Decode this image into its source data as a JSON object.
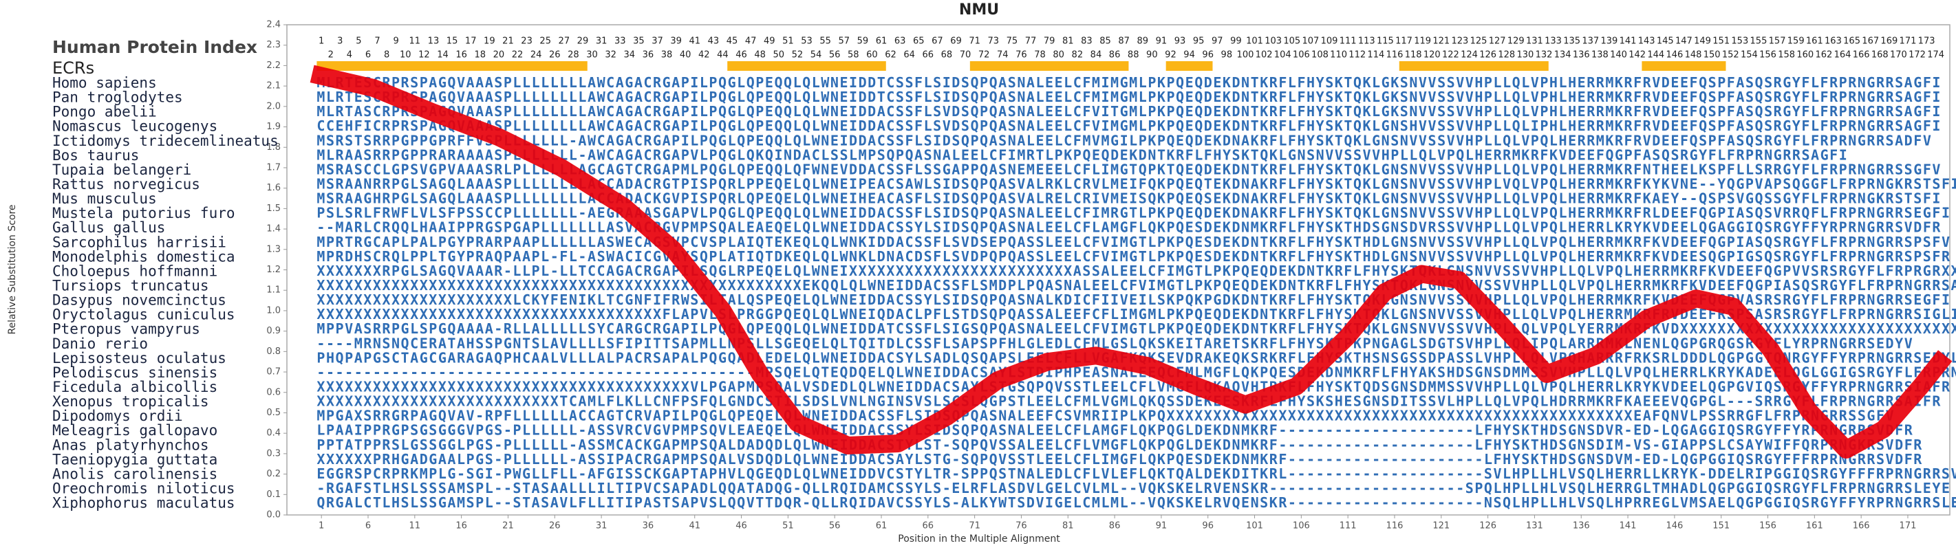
{
  "chart_data": {
    "type": "line",
    "title": "NMU",
    "x_label": "Position in the Multiple Alignment",
    "y_label": "Relative Substitution Score",
    "x": [
      0,
      6.6,
      13,
      20,
      26.7,
      33.4,
      38.7,
      44,
      48,
      52,
      57.4,
      62.8,
      68,
      73.5,
      78.8,
      84,
      89.5,
      94.8,
      100,
      105.5,
      110.9,
      114.9,
      118.9,
      122.9,
      126.9,
      132.3,
      137.6,
      143,
      148.3,
      152.3,
      156.3,
      160.4,
      164.4,
      168.4,
      172.4,
      175
    ],
    "series": [
      {
        "color": "#e8000b",
        "values": [
          2.16,
          2.09,
          1.97,
          1.85,
          1.7,
          1.51,
          1.3,
          1.0,
          0.69,
          0.45,
          0.34,
          0.35,
          0.48,
          0.66,
          0.75,
          0.78,
          0.73,
          0.63,
          0.54,
          0.63,
          0.87,
          1.09,
          1.18,
          1.15,
          0.96,
          0.69,
          0.78,
          0.96,
          1.06,
          1.02,
          0.81,
          0.51,
          0.32,
          0.42,
          0.63,
          0.78
        ]
      }
    ],
    "xlim": [
      -2.7,
      175.5
    ],
    "ylim": [
      0,
      2.4
    ],
    "xticks": [
      1,
      6,
      11,
      16,
      21,
      26,
      31,
      36,
      41,
      46,
      51,
      56,
      61,
      66,
      71,
      76,
      81,
      86,
      91,
      96,
      101,
      106,
      111,
      116,
      121,
      126,
      131,
      136,
      141,
      146,
      151,
      156,
      161,
      166,
      171
    ],
    "yticks": [
      {
        "value": 0,
        "label": "0.0"
      },
      {
        "value": 0.1,
        "label": "0.1"
      },
      {
        "value": 0.2,
        "label": "0.2"
      },
      {
        "value": 0.3,
        "label": "0.3"
      },
      {
        "value": 0.4,
        "label": "0.4"
      },
      {
        "value": 0.5,
        "label": "0.5"
      },
      {
        "value": 0.6,
        "label": "0.6"
      },
      {
        "value": 0.7,
        "label": "0.7"
      },
      {
        "value": 0.8,
        "label": "0.8"
      },
      {
        "value": 0.9,
        "label": "0.9"
      },
      {
        "value": 1,
        "label": "1.0"
      },
      {
        "value": 1.1,
        "label": "1.1"
      },
      {
        "value": 1.2,
        "label": "1.2"
      },
      {
        "value": 1.3,
        "label": "1.3"
      },
      {
        "value": 1.4,
        "label": "1.4"
      },
      {
        "value": 1.5,
        "label": "1.5"
      },
      {
        "value": 1.6,
        "label": "1.6"
      },
      {
        "value": 1.7,
        "label": "1.7"
      },
      {
        "value": 1.8,
        "label": "1.8"
      },
      {
        "value": 1.9,
        "label": "1.9"
      },
      {
        "value": 2,
        "label": "2.0"
      },
      {
        "value": 2.1,
        "label": "2.1"
      },
      {
        "value": 2.2,
        "label": "2.2"
      },
      {
        "value": 2.3,
        "label": "2.3"
      },
      {
        "value": 2.4,
        "label": "2.4"
      }
    ]
  },
  "alignment": {
    "header": "Human Protein Index",
    "ecr_label": "ECRs",
    "ecr_color": "#fbb516",
    "positions": [
      1,
      2,
      3,
      4,
      5,
      6,
      7,
      8,
      9,
      10,
      11,
      12,
      13,
      14,
      15,
      16,
      17,
      18,
      19,
      20,
      21,
      22,
      23,
      24,
      25,
      26,
      27,
      28,
      29,
      30,
      31,
      32,
      33,
      34,
      35,
      36,
      37,
      38,
      39,
      40,
      41,
      42,
      43,
      44,
      45,
      46,
      47,
      48,
      49,
      50,
      51,
      52,
      53,
      54,
      55,
      56,
      57,
      58,
      59,
      60,
      61,
      62,
      63,
      64,
      65,
      66,
      67,
      68,
      69,
      70,
      71,
      72,
      73,
      74,
      75,
      76,
      77,
      78,
      79,
      80,
      81,
      82,
      83,
      84,
      85,
      86,
      87,
      88,
      89,
      90,
      91,
      92,
      93,
      94,
      95,
      96,
      97,
      98,
      99,
      100,
      101,
      102,
      103,
      104,
      105,
      106,
      107,
      108,
      109,
      110,
      111,
      112,
      113,
      114,
      115,
      116,
      117,
      118,
      119,
      120,
      121,
      122,
      123,
      124,
      125,
      126,
      127,
      128,
      129,
      130,
      131,
      132,
      133,
      134,
      135,
      136,
      137,
      138,
      139,
      140,
      141,
      142,
      143,
      144,
      145,
      146,
      147,
      148,
      149,
      150,
      151,
      152,
      153,
      154,
      155,
      156,
      157,
      158,
      159,
      160,
      161,
      162,
      163,
      164,
      165,
      166,
      167,
      168,
      169,
      170,
      171,
      172,
      173,
      174
    ],
    "ecrs": [
      [
        1,
        29
      ],
      [
        45,
        61
      ],
      [
        71,
        87
      ],
      [
        92,
        96
      ],
      [
        117,
        132
      ],
      [
        143,
        151
      ]
    ],
    "rows": [
      {
        "species": "Homo sapiens",
        "sequence": "MLRTESCRPRSPAGQVAAASPLLLLLLLLAWCAGACRGAPILPQGLQPEQQLQLWNEIDDTCSSFLSIDSQPQASNALEELCFMIMGMLPKPQEQDEKDNTKRFLFHYSKTQKLGKSNVVSSVVHPLLQLVPHLHERRMKRFRVDEEFQSPFASQSRGYFLFRPRNGRRSAGFI"
      },
      {
        "species": "Pan troglodytes",
        "sequence": "MLRTESCRPRSPAGQVAAASPLLLLLLLLAWCAGACRGAPILPQGLQPEQQLQLWNEIDDTCSSFLSIDSQPQASNALEELCFMIMGMLPKPQEQDEKDNTKRFLFHYSKTQKLGKSNVVSSVVHPLLQLVPHLHERRMKRFRVDEEFQSPFASQSRGYFLFRPRNGRRSAGFI"
      },
      {
        "species": "Pongo abelii",
        "sequence": "MLRTASCRPRSPAGQVAAASPLLLLLLLLAWCAGACRGAPILPQGLQPEQQLQLWNEIDDACSSFLSVDSQPQASNALEELCFVITGMLPKPQEQDEKDNTKRFLFHYSKTQKLGKSNVVSSVVHPLLQLVPHLHERRMKRFRVDEEFQSPFASQSRGYFLFRPRNGRRSAGFI"
      },
      {
        "species": "Nomascus leucogenys",
        "sequence": "CCEHFICRPRSPAGQVAAASPLLLLLLLLAWCAGACRGAPILPQGLQPEQQLQLWNEIDDACSSFLSVDSQPQASNALEELCFVIMGMLPKPQEQDEKDNTKRFLFHYSKTQKLGNSHVVSSVVHPLLQLIPHLHERRMKRFRVDEEFQSPFASQSRGYFLFRPRNGRRSAGFI"
      },
      {
        "species": "Ictidomys tridecemlineatus",
        "sequence": "MSRSTSRRPGPPGPRFFVSPLLLLLLL-AWCAGACRGAPILPQGLQPEQQLQLWNEIDDACSSFLSIDSQPQASNALEELCFMVMGILPKPQEQDEKDNAKRFLFHYSKTQKLGNSNVVSSVVHPLLQLVPQLHERRMKRFRVDEEFQSPFASQSRGYFLFRPRNGRRSADFV"
      },
      {
        "species": "Bos taurus",
        "sequence": "MLRAASRRPGPPRARAAAASPLLLLLLL-AWCAGACRGAPVLPQGLQKQINDACLSSLMPSQPQASNALEELCFIMRTLPKPQEQDEKDNTKRFLFHYSKTQKLGNSNVVSSVVHPLLQLVPQLHERRMKRFKVDEEFQGPFASQSRGYFLFRPRNGRRSAGFI"
      },
      {
        "species": "Tupaia belangeri",
        "sequence": "MSRASCCLGPSVGPVAAASRLPLLLLLLAGCAGTCRGAPMLPQGLQPEQQLQFWNEVDDACSSFLSSGAPPQASNEMEEELCFLIMGTQPKTQEQDEKDNTKRFLFHYSKTQKLGNSNVVSSVVHPLLQLVPQLHERRMKRFNTHEELKSPFLLSRRGYFLFRPRNGRRSSGFV"
      },
      {
        "species": "Rattus norvegicus",
        "sequence": "MSRAANRRPGLSAGQLAAASPLLLLLLLLACCADACRGTPISPQRLPPEQELQLWNEIPEACSAWLSIDSQPQASVALRKLCRVLMEIFQKPQEQTEKDNAKRFLFHYSKTQKLGNSNVVSSVVHPLVQLVPQLHERRMKRFKYKVNE--YQGPVAPSQGGFLFRPRNGKRSTSFI"
      },
      {
        "species": "Mus musculus",
        "sequence": "MSRAAGHRPGLSAGQLAAASPLLLLLLLLACCADACKGVPISPQRLQPEQELQLWNEIHEACASFLSIDSQPQASVALRELCRIVMEISQKPQEQSEKDNAKRFLFHYSKTQKLGNSNVVSSVVHPLLQLVPQLHERRMKRFKAEY--QSPSVGQSSGYFLFRPRNGKRSTSFI"
      },
      {
        "species": "Mustela putorius furo",
        "sequence": "PSLSRLFRWFLVLSFPSSCCPLLLLLLL-AEGRAAASGAPVLPQGLQPEQQLQLWNEIDDACSSFLSIDSQPQASNALEELCFIMRGTLPKPQEQDEKDNAKRFLFHYSKTQKLGNSNVVSSVVHPLLQLVPQLHERRMKRFRLDEEFQGPIASQSVRRQFLFRPRNGRRSEGFI"
      },
      {
        "species": "Gallus gallus",
        "sequence": "--MARLCRQQLHAAIPPRGSPGAPLLLLLLLASVACRGVPMPSQALEAEQELQLWNEIDDACSSYLSIDSQPQASNALEELCFLAMGFLQKPQESDEKDNMKRFLFHYSKTHDSGNSDVRSSVVHPLLQLVPQLHERRLKRYKVDEELQGAGGIQSRGYFFYRPRNGRRSVDFR"
      },
      {
        "species": "Sarcophilus harrisii",
        "sequence": "MPRTRGCAPLPALPGYPRARPAAPLLLLLLASWECAGSVPCVSPLAIQTEKEQLQLWNKIDDACSSFLSVDSEPQASSLEELCFVIMGTLPKPQESDEKDNTKRFLFHYSKTHDLGNSNVVSSVVHPLLQLVPQLHERRMKRFKVDEEFQGPIASQSRGYFLFRPRNGRRSPSFV"
      },
      {
        "species": "Monodelphis domestica",
        "sequence": "MPRDHSCRQLPPLTGYPRAQPAAPL-FL-ASWACICGVAYSQPLATIQTDKEQLQLWNKLDNACDSFLSVDPQPQASSLEELCFVIMGTLPKPQESDEKDNTKRFLFHYSKTHDLGNSNVVSSVVHPLLQLVPQLHERRMKRFKVDEESQGPIGSQSRGYFLFRPRNGRRSPSFR"
      },
      {
        "species": "Choloepus hoffmanni",
        "sequence": "XXXXXXXRPGLSAGQVAAAR-LLPL-LLTCCAGACRGAPILSQGLRPEQELQLWNEIXXXXXXXXXXXXXXXXXXXXXXXXASSALEELCFIMGTLPKPQEQDEKDNTKRFLFHYSKTQKLGNSNVVSSVVHPLLQLVPQLHERRMKRFKVDEEFQGPVVSRSRGYFLFRPRGRXXXXXX"
      },
      {
        "species": "Tursiops truncatus",
        "sequence": "XXXXXXXXXXXXXXXXXXXXXXXXXXXXXXXXXXXXXXXXXXXXXXXXXXXXEKQQLQLWNEIDDACSSFLSMDPLPQASNALEELCFVIMGTLPKPQEQDEKDNTKRFLFHYSKTQKLGNSNVVSSVVHPLLQLVPQLHERRMKRFKVDEEFQGPIASQSRGYFLFRPRNGRRSAGFI"
      },
      {
        "species": "Dasypus novemcinctus",
        "sequence": "XXXXXXXXXXXXXXXXXXXXXLCKYFENIKLTCGNFIFRWSILTALQSPEQELQLWNEIDDACSSYLSIDSQPQASNALKDICFIIVEILSKPQKPGDKDNTKRFLFHYSKTQKLGNSNVVSSVVHPLLQLVPQLHERRMKRFKVDEEFQGPVASRSRGYFLFRPRNGRRSEGFI"
      },
      {
        "species": "Oryctolagus cuniculus",
        "sequence": "XXXXXXXXXXXXXXXXXXXXXXXXXXXXXXXXXXXXXFLAPVLSLPRGGPQEQLQLWNEIQDACLPFLSTDSQPQASSALEEFCFLIMGMLPKPQEQDEKDNTKRFLFHYSKTQKLGNSNVVSSVVHPLLQLVPQLHERRMKRFRVDEEFRSPSASRSRGYFLFRPRNGRRSIGLI"
      },
      {
        "species": "Pteropus vampyrus",
        "sequence": "MPPVASRRPGLSPGQAAAA-RLLALLLLLSYCARGCRGAPILPQGLQPEQQLQLWNEIDDATCSSFLSIGSQPQASNALEELCFVIMGTLPKPQEQDEKDNTKRFLFHYSKTQKLGNSNVVSSVVHPLLQLVPQLYERRMKRFKVDXXXXXXXXXXXXXXXXXXXXXXXXXXXXXX"
      },
      {
        "species": "Danio rerio",
        "sequence": "----MRNSNQCERATAHSSPGNTSLAVLLLLSFIPITTSAPMLLNPSLLSGEQELQLTQITDLCSSFLSAPSPFHLGLEDLCFMLGSLQKSKEITARETSKRFLFHYSKTPKPNGAGLSDGTSVHPLLQLIPQLARRRMKLNENLQGPGRQGSRGYFLYRPRNGRRSEDYV"
      },
      {
        "species": "Lepisosteus oculatus",
        "sequence": "PHQPAPGSCTAGCGARAGAQPHCAALVLLLALPACRSAPALPQGQADLEDELQLWNEIDDACSYLSADLQSQAPSLEELCFLLVGAFKQKSEVDRAKEQKSRKRFLFHYSKTHSNSGSSDPASSLVHPLLQLVPQHARRRFRKSRLDDDLQGPGGTQNRGYFFYRPRNGRRSEDYL"
      },
      {
        "species": "Pelodiscus sinensis",
        "sequence": "-----------------------------------------------MPSQELQTEQDQELQLWNEIDDACSAYLSTDIPHPEASNALEEQCFMLMGFLQKPQESDEKDNMKRFLFHYAKSHDSGNSDMMSSVVHPLLQLVPQLHERRLKRYKADEELQGLGGIGSRGYFLFRPRNGR-SAGAF"
      },
      {
        "species": "Ficedula albicollis",
        "sequence": "XXXXXXXXXXXXXXXXXXXXXXXXXXXXXXXXXXXXXXXXVLPGAPMPSQALVSDEDLQLWNEIDDACSAYLSTGSQPQVSSTLEELCFLVMGFLQKAQVHTRKFLFHYSKTQDSGNSDMMSSVVHPLLQLVPQLHERRLKRYKVDEELQGPGVIQSRGYFFYRPRNGRRSIAFR"
      },
      {
        "species": "Xenopus tropicalis",
        "sequence": "XXXXXXXXXXXXXXXXXXXXXXXXXXTCAMLFLKLLCNFPSFQLGNDCSTILSDSLVNLNGINSVSLSCSLQGPSTLEELCFMLVGMLQKQSSDEKEESKRFLFHYSKSHESGNSDITSSVLHPLLQLVPQLHDRRMKRFKAEEEVQGPGL---SRRGYFLFRPRNGRRSAIFR"
      },
      {
        "species": "Dipodomys ordii",
        "sequence": "MPGAXSRRGRPAGQVAV-RPFLLLLLLACCAGTCRVAPILPQGLQPEQELQLWNEIDDACSSFLSIDSQPQASNALEEFCSVMRIIPLKPQXXXXXXXXXXXXXXXXXXXXXXXXXXXXXXXXXXXXXXXXXXXXXXXXXXEAFQNVLPSSRRGFLFRPRNGRRSSGFV"
      },
      {
        "species": "Meleagris gallopavo",
        "sequence": "LPAAIPPRGPSGSGGGVPGS-PLLLLLL-ASSVRCVGVPMPSQVLEAEQELQLWNEIDDACSSYLSIDSQPQASNALEELCFLAMGFLQKPQGLDEKDNMKRF---------------------LFHYSKTHDSGNSDVR-ED-LQGAGGIQSRGYFFYRPRNGRRSVDFR"
      },
      {
        "species": "Anas platyrhynchos",
        "sequence": "PPTATPPRSLGSSGGLPGS-PLLLLLL-ASSMCACKGAPMPSQALDADQDLQLWNEIDDACSTYLST-SQPQVSSALEELCFLVMGFLQKPQGLDEKDNMKRF---------------------LFHYSKTHDSGNSDIM-VS-GIAPPSLCSAYWIFFQRPRNGKRSVDFR"
      },
      {
        "species": "Taeniopygia guttata",
        "sequence": "XXXXXXPRHGADGAALPGS-PLLLLLL-ASSIPACRGAPMPSQALVSDQDLQLWNEIDDACSAYLSTG-SQPQVSSTLEELCFLIMGFLQKPQESDEKDNMKRF---------------------LFHYSKTHDSGNSDVM-ED-LQGPGGIQSRGYFFFRPRNGRRSVDFR"
      },
      {
        "species": "Anolis carolinensis",
        "sequence": "EGGRSPCRPRKMPLG-SGI-PWGLLFLL-AFGISSCKGAPTAPHVLQGEQDLQLWNEIDDVCSTYLTR-SPPQSTNALEDLCFLVLEFLQKTQALDEKDITKRL---------------------SVLHPLLHLVSQLHERRLLKRYK-DDELRIPGGIQSRGYFFFRPRNGRRSVDFR"
      },
      {
        "species": "Oreochromis niloticus",
        "sequence": "-RGAFSTLHSLSSSAMSPL--STASAALLLILTIPVCSAPADLQQATADQG-QLLRQIDAMCSSYLS-ELRFLASDVLGELCVLML--VQKSKELRVENSKR---------------------SPQLHPLLHLVSQLHERRGLTMHADLQGPGGIQSRGYFLFRPRNGRRSLEYE"
      },
      {
        "species": "Xiphophorus maculatus",
        "sequence": "QRGALCTLHSLSSGAMSPL--STASAVLFLLITIPASTSAPVSLQQVTTDQR-QLLRQIDAVCSSYLS-ALKYWTSDVIGELCMLML--VQKSKELRVQENSKR---------------------NSQLHPLLHLVSQLHPRREGLVMSAELQGPGGIQSRGYFFYRPRNGRRSLEYE"
      }
    ]
  }
}
